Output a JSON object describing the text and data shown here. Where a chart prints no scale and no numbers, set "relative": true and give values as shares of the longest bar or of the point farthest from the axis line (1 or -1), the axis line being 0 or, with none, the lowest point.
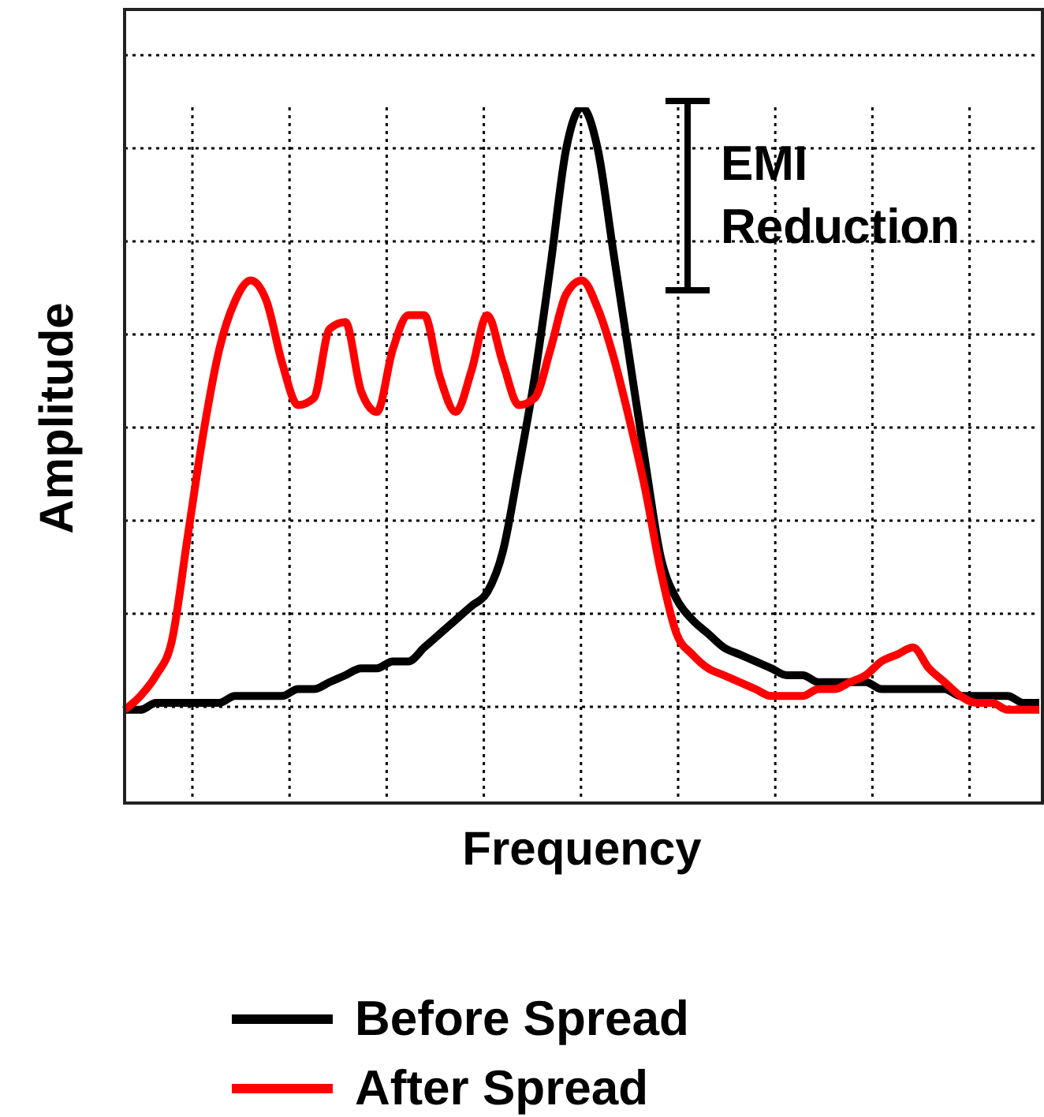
{
  "chart_data": {
    "type": "line",
    "relative": true,
    "xlabel": "Frequency",
    "ylabel": "Amplitude",
    "annotations": [
      "EMI Reduction"
    ],
    "grid": true,
    "legend": "bottom",
    "categories": [
      null,
      null,
      null,
      null,
      null,
      null,
      null,
      null,
      null,
      null,
      null,
      null,
      null,
      null,
      null,
      null,
      null,
      null,
      null,
      null,
      null,
      null,
      null,
      null,
      null,
      null,
      null,
      null,
      null,
      null,
      null,
      null,
      null,
      null,
      null,
      null,
      null,
      null,
      null,
      null,
      null,
      null,
      null,
      null,
      null,
      null,
      null,
      null,
      null,
      null,
      null,
      null,
      null,
      null,
      null,
      null,
      null,
      null,
      null
    ],
    "series": [
      {
        "name": "Before Spread",
        "color": "#000000",
        "values": [
          0.13,
          0.13,
          0.14,
          0.14,
          0.14,
          0.14,
          0.14,
          0.15,
          0.15,
          0.15,
          0.15,
          0.16,
          0.16,
          0.17,
          0.18,
          0.19,
          0.19,
          0.2,
          0.2,
          0.22,
          0.24,
          0.26,
          0.28,
          0.3,
          0.36,
          0.48,
          0.61,
          0.77,
          0.94,
          1,
          0.94,
          0.79,
          0.64,
          0.49,
          0.35,
          0.29,
          0.26,
          0.24,
          0.22,
          0.21,
          0.2,
          0.19,
          0.18,
          0.18,
          0.17,
          0.17,
          0.17,
          0.17,
          0.16,
          0.16,
          0.16,
          0.16,
          0.16,
          0.15,
          0.15,
          0.15,
          0.15,
          0.14,
          0.14
        ]
      },
      {
        "name": "After Spread",
        "color": "#ff0000",
        "values": [
          0.13,
          0.15,
          0.18,
          0.23,
          0.38,
          0.53,
          0.65,
          0.72,
          0.75,
          0.72,
          0.63,
          0.57,
          0.58,
          0.68,
          0.69,
          0.59,
          0.56,
          0.65,
          0.7,
          0.7,
          0.61,
          0.56,
          0.62,
          0.7,
          0.63,
          0.57,
          0.58,
          0.65,
          0.73,
          0.75,
          0.71,
          0.64,
          0.55,
          0.45,
          0.33,
          0.24,
          0.21,
          0.19,
          0.18,
          0.17,
          0.16,
          0.15,
          0.15,
          0.15,
          0.16,
          0.16,
          0.17,
          0.18,
          0.2,
          0.21,
          0.22,
          0.19,
          0.17,
          0.15,
          0.14,
          0.14,
          0.13,
          0.13,
          0.13
        ]
      }
    ]
  }
}
